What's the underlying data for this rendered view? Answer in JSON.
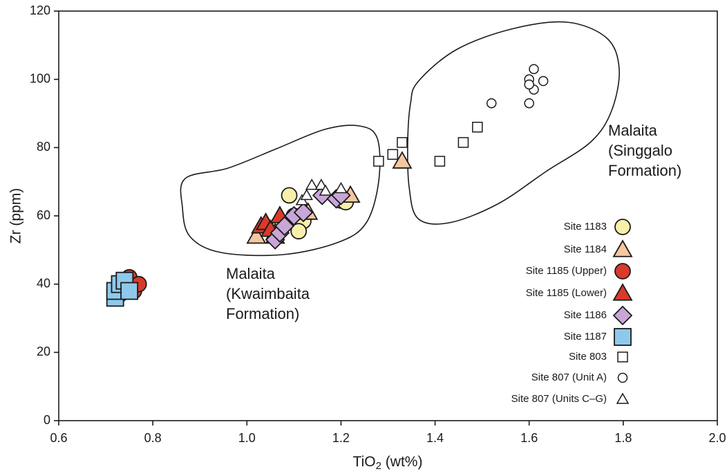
{
  "chart_data": {
    "type": "scatter",
    "x_label": {
      "base": "TiO",
      "sub": "2",
      "rest": " (wt%)"
    },
    "y_label": "Zr (ppm)",
    "xlim": [
      0.6,
      2.0
    ],
    "ylim": [
      0,
      120
    ],
    "xticks": [
      0.6,
      0.8,
      {
        "value": 1,
        "label": "1.0"
      },
      1.2,
      1.4,
      1.6,
      1.8,
      {
        "value": 2,
        "label": "2.0"
      }
    ],
    "yticks": [
      0,
      20,
      40,
      60,
      80,
      100,
      120
    ],
    "legend": "lower right",
    "annotations": [
      [
        "Malaita",
        "(Kwaimbaita",
        "Formation)"
      ],
      [
        "Malaita",
        "(Singgalo",
        "Formation)"
      ]
    ],
    "series": [
      {
        "name": "Site 1183",
        "marker": "circle",
        "color": "#f7efaa",
        "filled": true,
        "x": [
          1.07,
          1.1,
          1.12,
          1.11,
          1.2,
          1.21,
          1.09
        ],
        "values": [
          57,
          60,
          58.5,
          55.5,
          64.5,
          64,
          66
        ]
      },
      {
        "name": "Site 1184",
        "marker": "triangle",
        "color": "#f5c7a0",
        "filled": true,
        "x": [
          1.02,
          1.06,
          1.13,
          1.22,
          1.33
        ],
        "values": [
          54,
          55,
          61,
          66,
          76
        ]
      },
      {
        "name": "Site 1185 (Upper)",
        "marker": "circle",
        "color": "#d93a2b",
        "filled": true,
        "x": [
          0.73,
          0.74,
          0.76,
          0.75,
          0.77
        ],
        "values": [
          37,
          41,
          38,
          42,
          40
        ]
      },
      {
        "name": "Site 1185 (Lower)",
        "marker": "triangle",
        "color": "#d93a2b",
        "filled": true,
        "x": [
          1.06,
          1.03,
          1.04,
          1.05,
          1.07
        ],
        "values": [
          54,
          57,
          58,
          56,
          60
        ]
      },
      {
        "name": "Site 1186",
        "marker": "diamond",
        "color": "#c9a6d8",
        "filled": true,
        "x": [
          1.06,
          1.07,
          1.08,
          1.1,
          1.12,
          1.16,
          1.19,
          1.2
        ],
        "values": [
          53,
          55,
          57,
          60,
          61,
          66,
          65,
          66
        ]
      },
      {
        "name": "Site 1187",
        "marker": "square",
        "color": "#8ec9ec",
        "filled": true,
        "x": [
          0.72,
          0.72,
          0.73,
          0.74,
          0.75
        ],
        "values": [
          36,
          38,
          40,
          41,
          38
        ]
      },
      {
        "name": "Site 803",
        "marker": "square",
        "color": "#ffffff",
        "filled": false,
        "x": [
          1.28,
          1.31,
          1.33,
          1.41,
          1.46,
          1.49
        ],
        "values": [
          76,
          78,
          81.5,
          76,
          81.5,
          86
        ]
      },
      {
        "name": "Site 807 (Unit A)",
        "marker": "circle",
        "color": "#ffffff",
        "filled": false,
        "x": [
          1.52,
          1.6,
          1.6,
          1.61,
          1.61,
          1.63,
          1.6
        ],
        "values": [
          93,
          93,
          100,
          103,
          97,
          99.5,
          98.5
        ]
      },
      {
        "name": "Site 807 (Units C–G)",
        "marker": "triangle",
        "color": "#ffffff",
        "filled": false,
        "x": [
          1.117,
          1.127,
          1.138,
          1.158,
          1.167,
          1.2
        ],
        "values": [
          64.5,
          66,
          69,
          69,
          67.3,
          68
        ]
      }
    ]
  }
}
